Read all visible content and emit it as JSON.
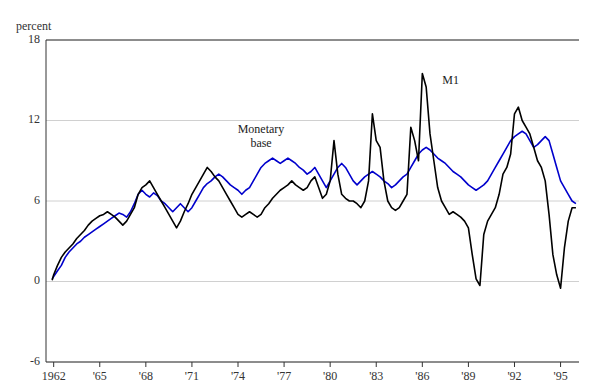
{
  "chart_data": {
    "type": "line",
    "ylabel": "percent",
    "xlim": [
      1961.5,
      1996.2
    ],
    "ylim": [
      -6,
      18
    ],
    "yticks": [
      -6,
      0,
      6,
      12,
      18
    ],
    "xticks": [
      1962,
      {
        "value": 1965,
        "label": "'65"
      },
      {
        "value": 1968,
        "label": "'68"
      },
      {
        "value": 1971,
        "label": "'71"
      },
      {
        "value": 1974,
        "label": "'74"
      },
      {
        "value": 1977,
        "label": "'77"
      },
      {
        "value": 1980,
        "label": "'80"
      },
      {
        "value": 1983,
        "label": "'83"
      },
      {
        "value": 1986,
        "label": "'86"
      },
      {
        "value": 1989,
        "label": "'89"
      },
      {
        "value": 1992,
        "label": "'92"
      },
      {
        "value": 1995,
        "label": "'95"
      }
    ],
    "grid": true,
    "annotations": [
      {
        "text": "Monetary\nbase",
        "x": 1975.5,
        "y": 9.8
      },
      {
        "text": "M1",
        "x": 1987.3,
        "y": 14.5
      }
    ],
    "series": [
      {
        "color": "#0000CC",
        "x": [
          1961.9,
          1962.25,
          1962.5,
          1962.75,
          1963.0,
          1963.25,
          1963.5,
          1963.75,
          1964.0,
          1964.25,
          1964.5,
          1964.75,
          1965.0,
          1965.25,
          1965.5,
          1965.75,
          1966.0,
          1966.25,
          1966.5,
          1966.75,
          1967.0,
          1967.25,
          1967.5,
          1967.75,
          1968.0,
          1968.25,
          1968.5,
          1968.75,
          1969.0,
          1969.25,
          1969.5,
          1969.75,
          1970.0,
          1970.25,
          1970.5,
          1970.75,
          1971.0,
          1971.25,
          1971.5,
          1971.75,
          1972.0,
          1972.25,
          1972.5,
          1972.75,
          1973.0,
          1973.25,
          1973.5,
          1973.75,
          1974.0,
          1974.25,
          1974.5,
          1974.75,
          1975.0,
          1975.25,
          1975.5,
          1975.75,
          1976.0,
          1976.25,
          1976.5,
          1976.75,
          1977.0,
          1977.25,
          1977.5,
          1977.75,
          1978.0,
          1978.25,
          1978.5,
          1978.75,
          1979.0,
          1979.25,
          1979.5,
          1979.75,
          1980.0,
          1980.25,
          1980.5,
          1980.75,
          1981.0,
          1981.25,
          1981.5,
          1981.75,
          1982.0,
          1982.25,
          1982.5,
          1982.75,
          1983.0,
          1983.25,
          1983.5,
          1983.75,
          1984.0,
          1984.25,
          1984.5,
          1984.75,
          1985.0,
          1985.25,
          1985.5,
          1985.75,
          1986.0,
          1986.25,
          1986.5,
          1986.75,
          1987.0,
          1987.25,
          1987.5,
          1987.75,
          1988.0,
          1988.25,
          1988.5,
          1988.75,
          1989.0,
          1989.25,
          1989.5,
          1989.75,
          1990.0,
          1990.25,
          1990.5,
          1990.75,
          1991.0,
          1991.25,
          1991.5,
          1991.75,
          1992.0,
          1992.25,
          1992.5,
          1992.75,
          1993.0,
          1993.25,
          1993.5,
          1993.75,
          1994.0,
          1994.25,
          1994.5,
          1994.75,
          1995.0,
          1995.25,
          1995.5,
          1995.75,
          1996.0
        ],
        "values": [
          0.2,
          0.8,
          1.2,
          1.8,
          2.2,
          2.5,
          2.8,
          3.0,
          3.3,
          3.5,
          3.7,
          3.9,
          4.1,
          4.3,
          4.5,
          4.7,
          4.9,
          5.1,
          5.0,
          4.8,
          5.2,
          5.8,
          6.5,
          6.8,
          6.5,
          6.3,
          6.6,
          6.4,
          6.0,
          5.8,
          5.5,
          5.2,
          5.5,
          5.8,
          5.5,
          5.2,
          5.5,
          6.0,
          6.5,
          7.0,
          7.3,
          7.5,
          7.8,
          8.0,
          7.8,
          7.5,
          7.2,
          7.0,
          6.8,
          6.5,
          6.8,
          7.0,
          7.5,
          8.0,
          8.5,
          8.8,
          9.0,
          9.2,
          9.0,
          8.8,
          9.0,
          9.2,
          9.0,
          8.8,
          8.5,
          8.3,
          8.0,
          8.2,
          8.5,
          8.0,
          7.5,
          7.0,
          7.5,
          8.0,
          8.5,
          8.8,
          8.5,
          8.0,
          7.5,
          7.2,
          7.5,
          7.8,
          8.0,
          8.2,
          8.0,
          7.8,
          7.5,
          7.3,
          7.0,
          7.2,
          7.5,
          7.8,
          8.0,
          8.5,
          9.0,
          9.5,
          9.8,
          10.0,
          9.8,
          9.5,
          9.2,
          9.0,
          8.8,
          8.5,
          8.2,
          8.0,
          7.8,
          7.5,
          7.2,
          7.0,
          6.8,
          7.0,
          7.2,
          7.5,
          8.0,
          8.5,
          9.0,
          9.5,
          10.0,
          10.5,
          10.8,
          11.0,
          11.2,
          11.0,
          10.5,
          10.0,
          10.2,
          10.5,
          10.8,
          10.5,
          9.5,
          8.5,
          7.5,
          7.0,
          6.5,
          6.0,
          5.8
        ]
      },
      {
        "color": "#000000",
        "x": [
          1961.9,
          1962.0,
          1962.25,
          1962.5,
          1962.75,
          1963.0,
          1963.25,
          1963.5,
          1963.75,
          1964.0,
          1964.25,
          1964.5,
          1964.75,
          1965.0,
          1965.25,
          1965.5,
          1965.75,
          1966.0,
          1966.25,
          1966.5,
          1966.75,
          1967.0,
          1967.25,
          1967.5,
          1967.75,
          1968.0,
          1968.25,
          1968.5,
          1968.75,
          1969.0,
          1969.25,
          1969.5,
          1969.75,
          1970.0,
          1970.25,
          1970.5,
          1970.75,
          1971.0,
          1971.25,
          1971.5,
          1971.75,
          1972.0,
          1972.25,
          1972.5,
          1972.75,
          1973.0,
          1973.25,
          1973.5,
          1973.75,
          1974.0,
          1974.25,
          1974.5,
          1974.75,
          1975.0,
          1975.25,
          1975.5,
          1975.75,
          1976.0,
          1976.25,
          1976.5,
          1976.75,
          1977.0,
          1977.25,
          1977.5,
          1977.75,
          1978.0,
          1978.25,
          1978.5,
          1978.75,
          1979.0,
          1979.25,
          1979.5,
          1979.75,
          1980.0,
          1980.25,
          1980.5,
          1980.75,
          1981.0,
          1981.25,
          1981.5,
          1981.75,
          1982.0,
          1982.25,
          1982.5,
          1982.75,
          1983.0,
          1983.25,
          1983.5,
          1983.75,
          1984.0,
          1984.25,
          1984.5,
          1984.75,
          1985.0,
          1985.25,
          1985.5,
          1985.75,
          1986.0,
          1986.25,
          1986.5,
          1986.75,
          1987.0,
          1987.25,
          1987.5,
          1987.75,
          1988.0,
          1988.25,
          1988.5,
          1988.75,
          1989.0,
          1989.25,
          1989.5,
          1989.75,
          1990.0,
          1990.25,
          1990.5,
          1990.75,
          1991.0,
          1991.25,
          1991.5,
          1991.75,
          1992.0,
          1992.25,
          1992.5,
          1992.75,
          1993.0,
          1993.25,
          1993.5,
          1993.75,
          1994.0,
          1994.25,
          1994.5,
          1994.75,
          1995.0,
          1995.25,
          1995.5,
          1995.75,
          1996.0
        ],
        "values": [
          0.1,
          0.5,
          1.2,
          1.8,
          2.2,
          2.5,
          2.8,
          3.2,
          3.5,
          3.8,
          4.2,
          4.5,
          4.7,
          4.9,
          5.0,
          5.2,
          5.0,
          4.8,
          4.5,
          4.2,
          4.5,
          5.0,
          5.5,
          6.5,
          7.0,
          7.2,
          7.5,
          7.0,
          6.5,
          6.0,
          5.5,
          5.0,
          4.5,
          4.0,
          4.5,
          5.2,
          5.8,
          6.5,
          7.0,
          7.5,
          8.0,
          8.5,
          8.2,
          7.8,
          7.5,
          7.0,
          6.5,
          6.0,
          5.5,
          5.0,
          4.8,
          5.0,
          5.2,
          5.0,
          4.8,
          5.0,
          5.5,
          5.8,
          6.2,
          6.5,
          6.8,
          7.0,
          7.2,
          7.5,
          7.2,
          7.0,
          6.8,
          7.0,
          7.5,
          7.8,
          7.0,
          6.2,
          6.5,
          7.5,
          10.5,
          8.0,
          6.5,
          6.2,
          6.0,
          6.0,
          5.8,
          5.5,
          6.0,
          7.5,
          12.5,
          10.5,
          10.0,
          7.5,
          6.0,
          5.5,
          5.3,
          5.5,
          6.0,
          6.5,
          11.5,
          10.5,
          9.0,
          15.5,
          14.5,
          11.0,
          9.0,
          7.0,
          6.0,
          5.5,
          5.0,
          5.2,
          5.0,
          4.8,
          4.5,
          4.0,
          2.0,
          0.2,
          -0.3,
          3.5,
          4.5,
          5.0,
          5.5,
          6.5,
          8.0,
          8.5,
          9.5,
          12.5,
          13.0,
          12.0,
          11.5,
          11.0,
          10.0,
          9.0,
          8.5,
          7.5,
          5.0,
          2.0,
          0.5,
          -0.5,
          2.5,
          4.5,
          5.5,
          5.5
        ]
      }
    ]
  }
}
